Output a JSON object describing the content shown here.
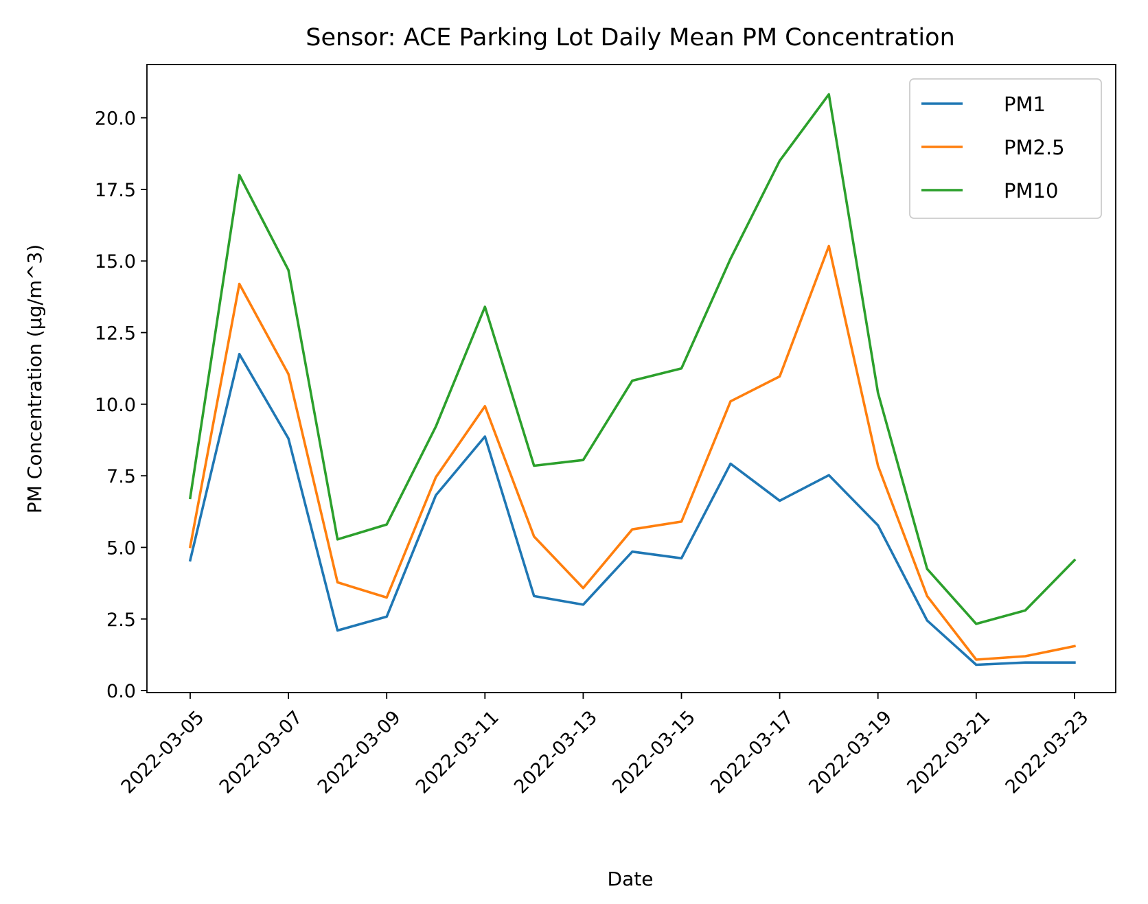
{
  "chart_data": {
    "type": "line",
    "title": "Sensor: ACE Parking Lot Daily Mean PM Concentration",
    "xlabel": "Date",
    "ylabel": "PM Concentration (µg/m^3)",
    "x": [
      "2022-03-05",
      "2022-03-06",
      "2022-03-07",
      "2022-03-08",
      "2022-03-09",
      "2022-03-10",
      "2022-03-11",
      "2022-03-12",
      "2022-03-13",
      "2022-03-14",
      "2022-03-15",
      "2022-03-16",
      "2022-03-17",
      "2022-03-18",
      "2022-03-19",
      "2022-03-20",
      "2022-03-21",
      "2022-03-22",
      "2022-03-23"
    ],
    "xticks": [
      "2022-03-05",
      "2022-03-07",
      "2022-03-09",
      "2022-03-11",
      "2022-03-13",
      "2022-03-15",
      "2022-03-17",
      "2022-03-19",
      "2022-03-21",
      "2022-03-23"
    ],
    "ylim": [
      -0.07,
      21.86
    ],
    "yticks": [
      "0.0",
      "2.5",
      "5.0",
      "7.5",
      "10.0",
      "12.5",
      "15.0",
      "17.5",
      "20.0"
    ],
    "grid": false,
    "legend_position": "upper right",
    "series": [
      {
        "name": "PM1",
        "color": "#1f77b4",
        "values": [
          4.55,
          11.75,
          8.8,
          2.1,
          2.58,
          6.82,
          8.87,
          3.3,
          3.0,
          4.85,
          4.62,
          7.92,
          6.63,
          7.52,
          5.77,
          2.45,
          0.9,
          0.98,
          0.98
        ]
      },
      {
        "name": "PM2.5",
        "color": "#ff7f0e",
        "values": [
          5.02,
          14.2,
          11.05,
          3.78,
          3.25,
          7.45,
          9.93,
          5.38,
          3.58,
          5.63,
          5.9,
          10.1,
          10.97,
          15.52,
          7.85,
          3.3,
          1.08,
          1.2,
          1.55
        ]
      },
      {
        "name": "PM10",
        "color": "#2ca02c",
        "values": [
          6.73,
          18.0,
          14.68,
          5.28,
          5.8,
          9.22,
          13.4,
          7.85,
          8.05,
          10.82,
          11.25,
          15.08,
          18.5,
          20.82,
          10.4,
          4.25,
          2.33,
          2.8,
          4.55
        ]
      }
    ]
  }
}
